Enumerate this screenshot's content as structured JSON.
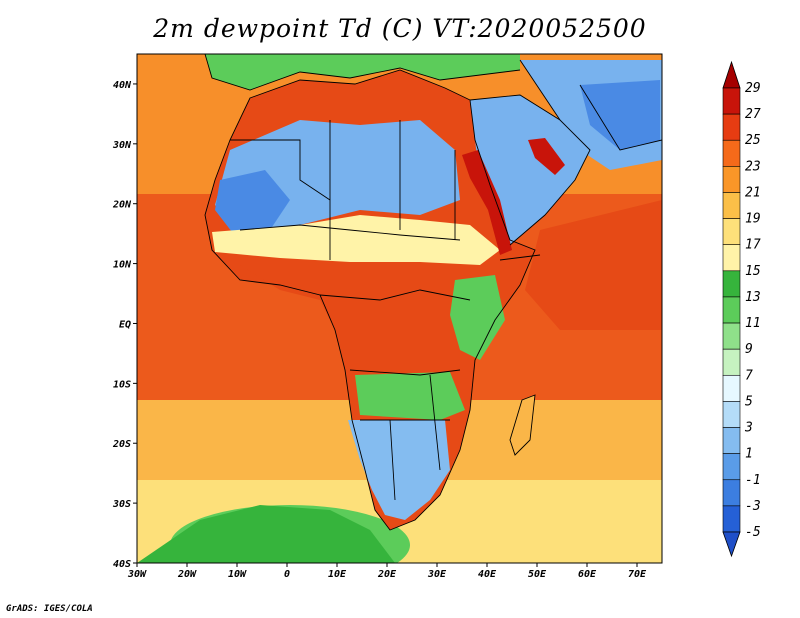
{
  "title": "2m dewpoint Td (C) VT:2020052500",
  "footer": "GrADS: IGES/COLA",
  "map": {
    "lon_range": [
      -30,
      75
    ],
    "lat_range": [
      -40,
      45
    ],
    "x_ticks": [
      {
        "lon": -30,
        "label": "30W"
      },
      {
        "lon": -20,
        "label": "20W"
      },
      {
        "lon": -10,
        "label": "10W"
      },
      {
        "lon": 0,
        "label": "0"
      },
      {
        "lon": 10,
        "label": "10E"
      },
      {
        "lon": 20,
        "label": "20E"
      },
      {
        "lon": 30,
        "label": "30E"
      },
      {
        "lon": 40,
        "label": "40E"
      },
      {
        "lon": 50,
        "label": "50E"
      },
      {
        "lon": 60,
        "label": "60E"
      },
      {
        "lon": 70,
        "label": "70E"
      }
    ],
    "y_ticks": [
      {
        "lat": 40,
        "label": "40N"
      },
      {
        "lat": 30,
        "label": "30N"
      },
      {
        "lat": 20,
        "label": "20N"
      },
      {
        "lat": 10,
        "label": "10N"
      },
      {
        "lat": 0,
        "label": "EQ"
      },
      {
        "lat": -10,
        "label": "10S"
      },
      {
        "lat": -20,
        "label": "20S"
      },
      {
        "lat": -30,
        "label": "30S"
      },
      {
        "lat": -40,
        "label": "40S"
      }
    ]
  },
  "colorbar": {
    "labels": [
      "29",
      "27",
      "25",
      "23",
      "21",
      "19",
      "17",
      "15",
      "13",
      "11",
      "9",
      "7",
      "5",
      "3",
      "1",
      "-1",
      "-3",
      "-5"
    ],
    "colors": [
      "#a50000",
      "#c8140a",
      "#e63c12",
      "#f56a1a",
      "#fa9628",
      "#fbbf48",
      "#fde07a",
      "#fff3a8",
      "#36b43c",
      "#5ccc5a",
      "#8fe08a",
      "#c6f2c0",
      "#e6f8ff",
      "#b4dcf8",
      "#84bcf0",
      "#5a9ce8",
      "#3c7ee0",
      "#2560d6",
      "#1f4fc8"
    ]
  },
  "palette": {
    "ocean_warm": "#ec5a1c",
    "ocean_mid": "#f78f2a",
    "ocean_cool": "#fab648",
    "ocean_cold": "#fde07a",
    "sahara": "#78b2ee",
    "sahara_dry": "#4a8ae4",
    "sahel": "#fff3a8",
    "tropics": "#e64a16",
    "green": "#5ccc5a",
    "antarctic_green": "#36b43c",
    "south_africa": "#84bcf0",
    "red_sea": "#c8140a"
  }
}
